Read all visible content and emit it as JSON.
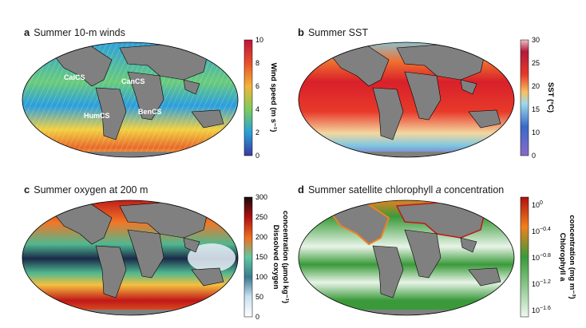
{
  "panels": [
    {
      "letter": "a",
      "title": "Summer 10-m winds",
      "colorbar": {
        "label": "Wind speed (m s⁻¹)",
        "ticks": [
          "10",
          "8",
          "6",
          "4",
          "2",
          "0"
        ],
        "colors": [
          "#c0143c",
          "#e8502a",
          "#f4b43a",
          "#7ccc5a",
          "#2aa0d8",
          "#3a3aa0"
        ]
      },
      "map_labels": [
        "CalCS",
        "CanCS",
        "HumCS",
        "BenCS"
      ],
      "ocean_colors": [
        "#2a9ee0",
        "#6acb7a",
        "#f2d040",
        "#e86a2a"
      ]
    },
    {
      "letter": "b",
      "title": "Summer SST",
      "colorbar": {
        "label": "SST (°C)",
        "ticks": [
          "30",
          "25",
          "20",
          "15",
          "10",
          "0"
        ],
        "colors": [
          "#b01a3a",
          "#e83a2a",
          "#f7c060",
          "#a0d8e8",
          "#3a6ac8",
          "#8a6ac8"
        ]
      },
      "ocean_colors": [
        "#d8202a",
        "#f07030",
        "#f4d8a0",
        "#80c8e0",
        "#7a5ac0"
      ]
    },
    {
      "letter": "c",
      "title": "Summer oxygen at 200 m",
      "colorbar": {
        "label_line1": "Dissolved oxygen",
        "label_line2": "concentration (µmol kg⁻¹)",
        "ticks": [
          "300",
          "250",
          "200",
          "150",
          "100",
          "50",
          "0"
        ],
        "colors": [
          "#1a0a0a",
          "#b01010",
          "#f07020",
          "#60c8a0",
          "#3a7a90",
          "#c8e0f0",
          "#ffffff"
        ]
      },
      "ocean_colors": [
        "#c01818",
        "#f07828",
        "#f4c040",
        "#50b890",
        "#1a2a4a",
        "#e8f0f8"
      ]
    },
    {
      "letter": "d",
      "title_pre": "Summer satellite chlorophyll ",
      "title_italic": "a",
      "title_post": " concentration",
      "colorbar": {
        "label_line1": "Chlorophyll a",
        "label_line2": "concentration (mg m⁻³)",
        "ticks": [
          "10",
          "10",
          "10",
          "10",
          "10"
        ],
        "exps": [
          "0",
          "−0.4",
          "−0.8",
          "−1.2",
          "−1.6"
        ],
        "colors": [
          "#b01010",
          "#f08020",
          "#3a9a3a",
          "#90c890",
          "#f0f8f0"
        ]
      },
      "ocean_colors": [
        "#3a9a3a",
        "#e8f4e8",
        "#f08020",
        "#c01818"
      ]
    }
  ]
}
